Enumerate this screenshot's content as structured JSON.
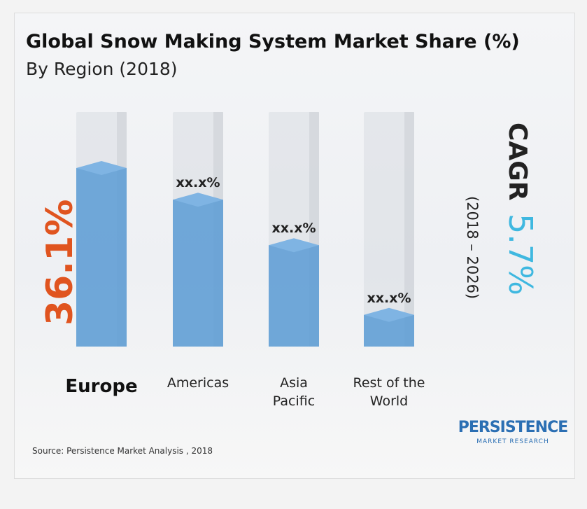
{
  "chart_data": {
    "type": "bar",
    "title": "Global Snow Making System Market Share (%)",
    "subtitle": "By Region (2018)",
    "categories": [
      "Europe",
      "Americas",
      "Asia Pacific",
      "Rest of the World"
    ],
    "values": [
      36.1,
      29.7,
      20.5,
      6.4
    ],
    "value_labels": [
      "36.1%",
      "xx.x%",
      "xx.x%",
      "xx.x%"
    ],
    "color": "#5b9bd5",
    "cagr": {
      "label": "CAGR",
      "value_label": "5.7%",
      "period": "(2018 – 2026)"
    },
    "source": "Source: Persistence Market Analysis , 2018",
    "logo": {
      "name": "PERSISTENCE",
      "tagline": "MARKET RESEARCH"
    }
  }
}
